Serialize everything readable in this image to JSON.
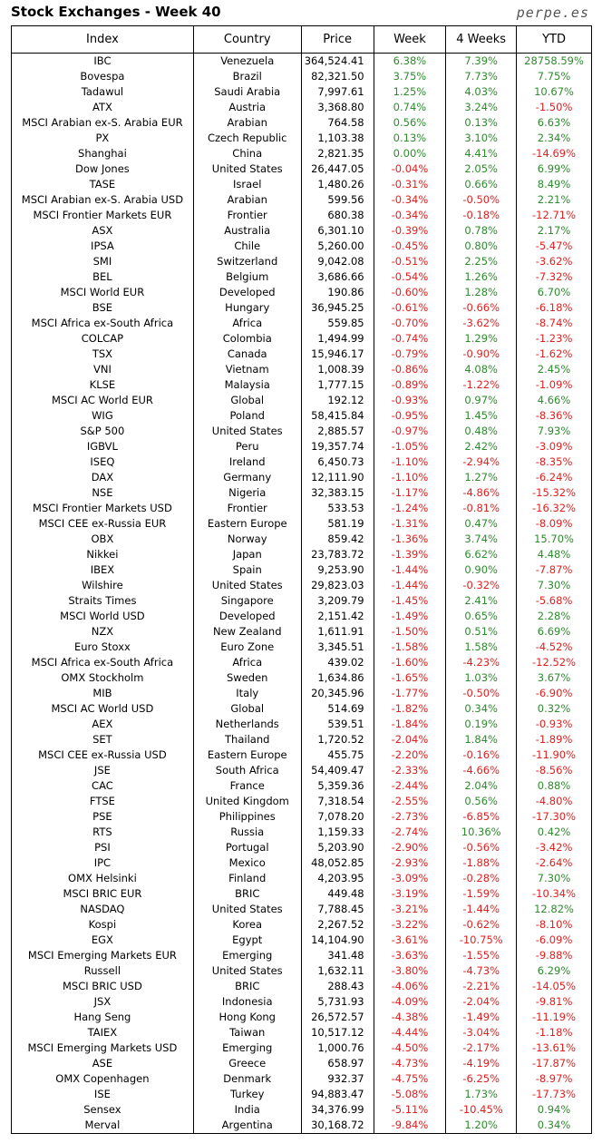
{
  "header": {
    "title": "Stock Exchanges - Week 40",
    "site": "perpe.es"
  },
  "table": {
    "columns": [
      "Index",
      "Country",
      "Price",
      "Week",
      "4 Weeks",
      "YTD"
    ],
    "rows": [
      [
        "IBC",
        "Venezuela",
        "364,524.41",
        "6.38%",
        "7.39%",
        "28758.59%"
      ],
      [
        "Bovespa",
        "Brazil",
        "82,321.50",
        "3.75%",
        "7.73%",
        "7.75%"
      ],
      [
        "Tadawul",
        "Saudi Arabia",
        "7,997.61",
        "1.25%",
        "4.03%",
        "10.67%"
      ],
      [
        "ATX",
        "Austria",
        "3,368.80",
        "0.74%",
        "3.24%",
        "-1.50%"
      ],
      [
        "MSCI Arabian ex-S. Arabia EUR",
        "Arabian",
        "764.58",
        "0.56%",
        "0.13%",
        "6.63%"
      ],
      [
        "PX",
        "Czech Republic",
        "1,103.38",
        "0.13%",
        "3.10%",
        "2.34%"
      ],
      [
        "Shanghai",
        "China",
        "2,821.35",
        "0.00%",
        "4.41%",
        "-14.69%"
      ],
      [
        "Dow Jones",
        "United States",
        "26,447.05",
        "-0.04%",
        "2.05%",
        "6.99%"
      ],
      [
        "TASE",
        "Israel",
        "1,480.26",
        "-0.31%",
        "0.66%",
        "8.49%"
      ],
      [
        "MSCI Arabian ex-S. Arabia USD",
        "Arabian",
        "599.56",
        "-0.34%",
        "-0.50%",
        "2.21%"
      ],
      [
        "MSCI Frontier Markets EUR",
        "Frontier",
        "680.38",
        "-0.34%",
        "-0.18%",
        "-12.71%"
      ],
      [
        "ASX",
        "Australia",
        "6,301.10",
        "-0.39%",
        "0.78%",
        "2.17%"
      ],
      [
        "IPSA",
        "Chile",
        "5,260.00",
        "-0.45%",
        "0.80%",
        "-5.47%"
      ],
      [
        "SMI",
        "Switzerland",
        "9,042.08",
        "-0.51%",
        "2.25%",
        "-3.62%"
      ],
      [
        "BEL",
        "Belgium",
        "3,686.66",
        "-0.54%",
        "1.26%",
        "-7.32%"
      ],
      [
        "MSCI World EUR",
        "Developed",
        "190.86",
        "-0.60%",
        "1.28%",
        "6.70%"
      ],
      [
        "BSE",
        "Hungary",
        "36,945.25",
        "-0.61%",
        "-0.66%",
        "-6.18%"
      ],
      [
        "MSCI Africa ex-South Africa",
        "Africa",
        "559.85",
        "-0.70%",
        "-3.62%",
        "-8.74%"
      ],
      [
        "COLCAP",
        "Colombia",
        "1,494.99",
        "-0.74%",
        "1.29%",
        "-1.23%"
      ],
      [
        "TSX",
        "Canada",
        "15,946.17",
        "-0.79%",
        "-0.90%",
        "-1.62%"
      ],
      [
        "VNI",
        "Vietnam",
        "1,008.39",
        "-0.86%",
        "4.08%",
        "2.45%"
      ],
      [
        "KLSE",
        "Malaysia",
        "1,777.15",
        "-0.89%",
        "-1.22%",
        "-1.09%"
      ],
      [
        "MSCI AC World EUR",
        "Global",
        "192.12",
        "-0.93%",
        "0.97%",
        "4.66%"
      ],
      [
        "WIG",
        "Poland",
        "58,415.84",
        "-0.95%",
        "1.45%",
        "-8.36%"
      ],
      [
        "S&P 500",
        "United States",
        "2,885.57",
        "-0.97%",
        "0.48%",
        "7.93%"
      ],
      [
        "IGBVL",
        "Peru",
        "19,357.74",
        "-1.05%",
        "2.42%",
        "-3.09%"
      ],
      [
        "ISEQ",
        "Ireland",
        "6,450.73",
        "-1.10%",
        "-2.94%",
        "-8.35%"
      ],
      [
        "DAX",
        "Germany",
        "12,111.90",
        "-1.10%",
        "1.27%",
        "-6.24%"
      ],
      [
        "NSE",
        "Nigeria",
        "32,383.15",
        "-1.17%",
        "-4.86%",
        "-15.32%"
      ],
      [
        "MSCI Frontier Markets USD",
        "Frontier",
        "533.53",
        "-1.24%",
        "-0.81%",
        "-16.32%"
      ],
      [
        "MSCI CEE ex-Russia EUR",
        "Eastern Europe",
        "581.19",
        "-1.31%",
        "0.47%",
        "-8.09%"
      ],
      [
        "OBX",
        "Norway",
        "859.42",
        "-1.36%",
        "3.74%",
        "15.70%"
      ],
      [
        "Nikkei",
        "Japan",
        "23,783.72",
        "-1.39%",
        "6.62%",
        "4.48%"
      ],
      [
        "IBEX",
        "Spain",
        "9,253.90",
        "-1.44%",
        "0.90%",
        "-7.87%"
      ],
      [
        "Wilshire",
        "United States",
        "29,823.03",
        "-1.44%",
        "-0.32%",
        "7.30%"
      ],
      [
        "Straits Times",
        "Singapore",
        "3,209.79",
        "-1.45%",
        "2.41%",
        "-5.68%"
      ],
      [
        "MSCI World USD",
        "Developed",
        "2,151.42",
        "-1.49%",
        "0.65%",
        "2.28%"
      ],
      [
        "NZX",
        "New Zealand",
        "1,611.91",
        "-1.50%",
        "0.51%",
        "6.69%"
      ],
      [
        "Euro Stoxx",
        "Euro Zone",
        "3,345.51",
        "-1.58%",
        "1.58%",
        "-4.52%"
      ],
      [
        "MSCI Africa ex-South Africa",
        "Africa",
        "439.02",
        "-1.60%",
        "-4.23%",
        "-12.52%"
      ],
      [
        "OMX Stockholm",
        "Sweden",
        "1,634.86",
        "-1.65%",
        "1.03%",
        "3.67%"
      ],
      [
        "MIB",
        "Italy",
        "20,345.96",
        "-1.77%",
        "-0.50%",
        "-6.90%"
      ],
      [
        "MSCI AC World USD",
        "Global",
        "514.69",
        "-1.82%",
        "0.34%",
        "0.32%"
      ],
      [
        "AEX",
        "Netherlands",
        "539.51",
        "-1.84%",
        "0.19%",
        "-0.93%"
      ],
      [
        "SET",
        "Thailand",
        "1,720.52",
        "-2.04%",
        "1.84%",
        "-1.89%"
      ],
      [
        "MSCI CEE ex-Russia USD",
        "Eastern Europe",
        "455.75",
        "-2.20%",
        "-0.16%",
        "-11.90%"
      ],
      [
        "JSE",
        "South Africa",
        "54,409.47",
        "-2.33%",
        "-4.66%",
        "-8.56%"
      ],
      [
        "CAC",
        "France",
        "5,359.36",
        "-2.44%",
        "2.04%",
        "0.88%"
      ],
      [
        "FTSE",
        "United Kingdom",
        "7,318.54",
        "-2.55%",
        "0.56%",
        "-4.80%"
      ],
      [
        "PSE",
        "Philippines",
        "7,078.20",
        "-2.73%",
        "-6.85%",
        "-17.30%"
      ],
      [
        "RTS",
        "Russia",
        "1,159.33",
        "-2.74%",
        "10.36%",
        "0.42%"
      ],
      [
        "PSI",
        "Portugal",
        "5,203.90",
        "-2.90%",
        "-0.56%",
        "-3.42%"
      ],
      [
        "IPC",
        "Mexico",
        "48,052.85",
        "-2.93%",
        "-1.88%",
        "-2.64%"
      ],
      [
        "OMX Helsinki",
        "Finland",
        "4,203.95",
        "-3.09%",
        "-0.28%",
        "7.30%"
      ],
      [
        "MSCI BRIC EUR",
        "BRIC",
        "449.48",
        "-3.19%",
        "-1.59%",
        "-10.34%"
      ],
      [
        "NASDAQ",
        "United States",
        "7,788.45",
        "-3.21%",
        "-1.44%",
        "12.82%"
      ],
      [
        "Kospi",
        "Korea",
        "2,267.52",
        "-3.22%",
        "-0.62%",
        "-8.10%"
      ],
      [
        "EGX",
        "Egypt",
        "14,104.90",
        "-3.61%",
        "-10.75%",
        "-6.09%"
      ],
      [
        "MSCI Emerging Markets EUR",
        "Emerging",
        "341.48",
        "-3.63%",
        "-1.55%",
        "-9.88%"
      ],
      [
        "Russell",
        "United States",
        "1,632.11",
        "-3.80%",
        "-4.73%",
        "6.29%"
      ],
      [
        "MSCI BRIC USD",
        "BRIC",
        "288.43",
        "-4.06%",
        "-2.21%",
        "-14.05%"
      ],
      [
        "JSX",
        "Indonesia",
        "5,731.93",
        "-4.09%",
        "-2.04%",
        "-9.81%"
      ],
      [
        "Hang Seng",
        "Hong Kong",
        "26,572.57",
        "-4.38%",
        "-1.49%",
        "-11.19%"
      ],
      [
        "TAIEX",
        "Taiwan",
        "10,517.12",
        "-4.44%",
        "-3.04%",
        "-1.18%"
      ],
      [
        "MSCI Emerging Markets USD",
        "Emerging",
        "1,000.76",
        "-4.50%",
        "-2.17%",
        "-13.61%"
      ],
      [
        "ASE",
        "Greece",
        "658.97",
        "-4.73%",
        "-4.19%",
        "-17.87%"
      ],
      [
        "OMX Copenhagen",
        "Denmark",
        "932.37",
        "-4.75%",
        "-6.25%",
        "-8.97%"
      ],
      [
        "ISE",
        "Turkey",
        "94,883.47",
        "-5.08%",
        "1.73%",
        "-17.73%"
      ],
      [
        "Sensex",
        "India",
        "34,376.99",
        "-5.11%",
        "-10.45%",
        "0.94%"
      ],
      [
        "Merval",
        "Argentina",
        "30,168.72",
        "-9.84%",
        "1.20%",
        "0.34%"
      ]
    ]
  }
}
